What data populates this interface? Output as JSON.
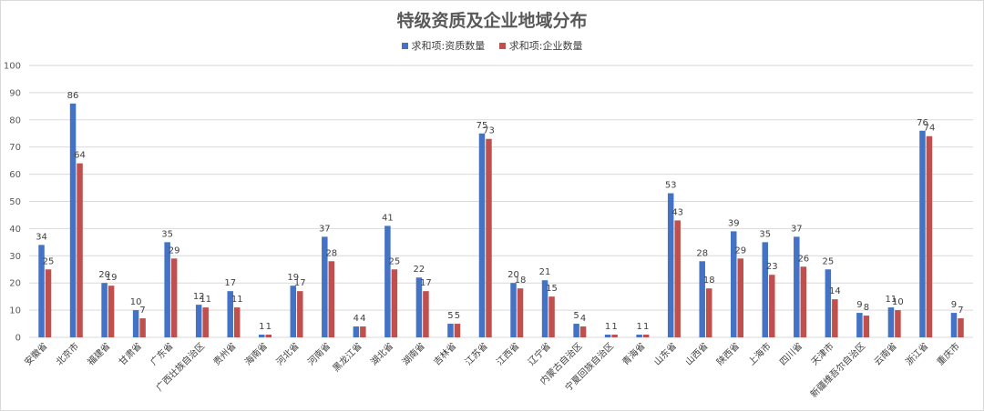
{
  "chart_data": {
    "type": "bar",
    "title": "特级资质及企业地域分布",
    "xlabel": "",
    "ylabel": "",
    "ylim": [
      0,
      100
    ],
    "yticks": [
      0,
      10,
      20,
      30,
      40,
      50,
      60,
      70,
      80,
      90,
      100
    ],
    "grid": true,
    "legend_position": "top-center",
    "categories": [
      "安徽省",
      "北京市",
      "福建省",
      "甘肃省",
      "广东省",
      "广西壮族自治区",
      "贵州省",
      "海南省",
      "河北省",
      "河南省",
      "黑龙江省",
      "湖北省",
      "湖南省",
      "吉林省",
      "江苏省",
      "江西省",
      "辽宁省",
      "内蒙古自治区",
      "宁夏回族自治区",
      "青海省",
      "山东省",
      "山西省",
      "陕西省",
      "上海市",
      "四川省",
      "天津市",
      "新疆维吾尔自治区",
      "云南省",
      "浙江省",
      "重庆市"
    ],
    "series": [
      {
        "name": "求和项:资质数量",
        "color": "#4472c4",
        "values": [
          34,
          86,
          20,
          10,
          35,
          12,
          17,
          1,
          19,
          37,
          4,
          41,
          22,
          5,
          75,
          20,
          21,
          5,
          1,
          1,
          53,
          28,
          39,
          35,
          37,
          25,
          9,
          11,
          76,
          9
        ]
      },
      {
        "name": "求和项:企业数量",
        "color": "#c0504d",
        "values": [
          25,
          64,
          19,
          7,
          29,
          11,
          11,
          1,
          17,
          28,
          4,
          25,
          17,
          5,
          73,
          18,
          15,
          4,
          1,
          1,
          43,
          18,
          29,
          23,
          26,
          14,
          8,
          10,
          74,
          7
        ]
      }
    ]
  }
}
